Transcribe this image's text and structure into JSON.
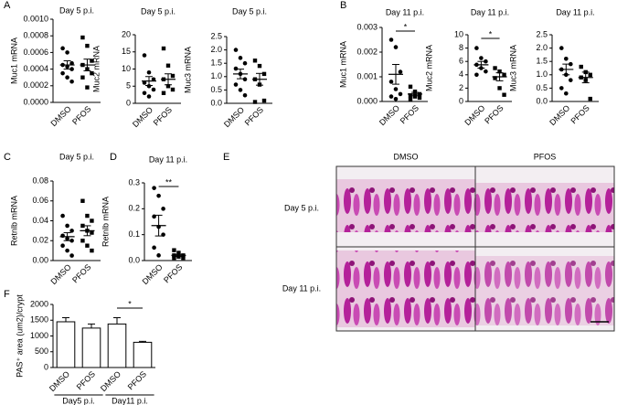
{
  "panel_labels": [
    "A",
    "B",
    "C",
    "D",
    "E",
    "F"
  ],
  "chart_data": [
    {
      "type": "dotplot",
      "title": "Day 5 p.i.",
      "y_label": "Muc1 mRNA",
      "categories": [
        "DMSO",
        "PFOS"
      ],
      "ylim": [
        0,
        0.001
      ],
      "yticks": [
        {
          "value": 0,
          "label": "0.0000"
        },
        {
          "value": 0.0002,
          "label": "0.0002"
        },
        {
          "value": 0.0004,
          "label": "0.0004"
        },
        {
          "value": 0.0006,
          "label": "0.0006"
        },
        {
          "value": 0.0008,
          "label": "0.0008"
        },
        {
          "value": 0.001,
          "label": "0.0010"
        }
      ],
      "points": [
        [
          0.00065,
          0.0006,
          0.00047,
          0.00045,
          0.00043,
          0.0004,
          0.00035,
          0.0003,
          0.00025
        ],
        [
          0.00078,
          0.00068,
          0.0005,
          0.00045,
          0.0004,
          0.00035,
          0.0003,
          0.00018
        ]
      ],
      "means": [
        0.00045,
        0.00045
      ],
      "sem": [
        5e-05,
        7e-05
      ]
    },
    {
      "type": "dotplot",
      "title": "Day 5 p.i.",
      "y_label": "Muc2 mRNA",
      "categories": [
        "DMSO",
        "PFOS"
      ],
      "ylim": [
        0,
        20
      ],
      "yticks": [
        0,
        5,
        10,
        15,
        20
      ],
      "points": [
        [
          14,
          9,
          7,
          6,
          5,
          4,
          3,
          2
        ],
        [
          16,
          11,
          8,
          7,
          5,
          4,
          3
        ]
      ],
      "means": [
        6.5,
        7
      ],
      "sem": [
        1.3,
        1.6
      ]
    },
    {
      "type": "dotplot",
      "title": "Day 5 p.i.",
      "y_label": "Muc3 mRNA",
      "categories": [
        "DMSO",
        "PFOS"
      ],
      "ylim": [
        0,
        2.5
      ],
      "yticks": [
        {
          "value": 0,
          "label": "0.0"
        },
        0.5,
        {
          "value": 1,
          "label": "1.0"
        },
        1.5,
        {
          "value": 2,
          "label": "2.0"
        },
        2.5
      ],
      "points": [
        [
          2.0,
          1.7,
          1.5,
          1.3,
          1.1,
          0.9,
          0.7,
          0.5,
          0.3
        ],
        [
          1.6,
          1.4,
          1.1,
          0.9,
          0.7,
          0.1,
          0.05
        ]
      ],
      "means": [
        1.1,
        0.9
      ],
      "sem": [
        0.18,
        0.22
      ]
    },
    {
      "type": "dotplot",
      "title": "Day 11 p.i.",
      "y_label": "Muc1 mRNA",
      "categories": [
        "DMSO",
        "PFOS"
      ],
      "ylim": [
        0,
        0.003
      ],
      "yticks": [
        {
          "value": 0,
          "label": "0.000"
        },
        {
          "value": 0.001,
          "label": "0.001"
        },
        {
          "value": 0.002,
          "label": "0.002"
        },
        {
          "value": 0.003,
          "label": "0.003"
        }
      ],
      "points": [
        [
          0.0025,
          0.0022,
          0.0012,
          0.0008,
          0.0005,
          0.0003,
          0.0002,
          0.0001
        ],
        [
          0.0006,
          0.0004,
          0.0003,
          0.00025,
          0.0002,
          0.00015,
          0.0001
        ]
      ],
      "means": [
        0.0011,
        0.0003
      ],
      "sem": [
        0.0004,
        7e-05
      ],
      "significance": "*"
    },
    {
      "type": "dotplot",
      "title": "Day 11 p.i.",
      "y_label": "Muc2 mRNA",
      "categories": [
        "DMSO",
        "PFOS"
      ],
      "ylim": [
        0,
        10
      ],
      "yticks": [
        0,
        2,
        4,
        6,
        8,
        10
      ],
      "points": [
        [
          8,
          6.5,
          6,
          5.5,
          5,
          4.5,
          4
        ],
        [
          5,
          4.5,
          4,
          3.5,
          2,
          1
        ]
      ],
      "means": [
        5.5,
        3.7
      ],
      "sem": [
        0.5,
        0.6
      ],
      "significance": "*"
    },
    {
      "type": "dotplot",
      "title": "Day 11 p.i.",
      "y_label": "Muc3 mRNA",
      "categories": [
        "DMSO",
        "PFOS"
      ],
      "ylim": [
        0,
        2.5
      ],
      "yticks": [
        {
          "value": 0,
          "label": "0.0"
        },
        0.5,
        {
          "value": 1,
          "label": "1.0"
        },
        1.5,
        {
          "value": 2,
          "label": "2.0"
        },
        2.5
      ],
      "points": [
        [
          2.0,
          1.6,
          1.4,
          1.2,
          1.0,
          0.8,
          0.5,
          0.3
        ],
        [
          1.3,
          1.1,
          1.0,
          0.9,
          0.8,
          0.1
        ]
      ],
      "means": [
        1.2,
        0.9
      ],
      "sem": [
        0.2,
        0.2
      ]
    },
    {
      "type": "dotplot",
      "title": "Day 5 p.i.",
      "y_label": "Retnlb mRNA",
      "categories": [
        "DMSO",
        "PFOS"
      ],
      "ylim": [
        0,
        0.08
      ],
      "yticks": [
        {
          "value": 0,
          "label": "0.00"
        },
        0.02,
        0.04,
        0.06,
        0.08
      ],
      "points": [
        [
          0.045,
          0.035,
          0.03,
          0.025,
          0.022,
          0.02,
          0.015,
          0.01,
          0.005
        ],
        [
          0.06,
          0.045,
          0.04,
          0.035,
          0.03,
          0.028,
          0.02,
          0.015,
          0.01
        ]
      ],
      "means": [
        0.024,
        0.03
      ],
      "sem": [
        0.004,
        0.005
      ]
    },
    {
      "type": "dotplot",
      "title": "Day 11 p.i.",
      "y_label": "Retnlb mRNA",
      "categories": [
        "DMSO",
        "PFOS"
      ],
      "ylim": [
        0,
        0.3
      ],
      "yticks": [
        {
          "value": 0,
          "label": "0.0"
        },
        0.1,
        0.2,
        0.3
      ],
      "points": [
        [
          0.28,
          0.25,
          0.2,
          0.17,
          0.13,
          0.1,
          0.05,
          0.02
        ],
        [
          0.04,
          0.03,
          0.02,
          0.02,
          0.015,
          0.01,
          0.01
        ]
      ],
      "means": [
        0.135,
        0.02
      ],
      "sem": [
        0.04,
        0.004
      ],
      "significance": "**"
    },
    {
      "type": "bar",
      "y_label": "PAS⁺ area (um2)/crypt",
      "categories": [
        "DMSO",
        "PFOS",
        "DMSO",
        "PFOS"
      ],
      "groups": [
        "Day5 p.i.",
        "Day11 p.i."
      ],
      "ylim": [
        0,
        2000
      ],
      "yticks": [
        0,
        500,
        1000,
        1500,
        2000
      ],
      "values": [
        1450,
        1250,
        1380,
        800
      ],
      "errors": [
        130,
        130,
        200,
        30
      ],
      "significance": "*"
    }
  ],
  "histology": {
    "columns": [
      "DMSO",
      "PFOS"
    ],
    "rows": [
      "Day 5 p.i.",
      "Day 11 p.i."
    ]
  }
}
